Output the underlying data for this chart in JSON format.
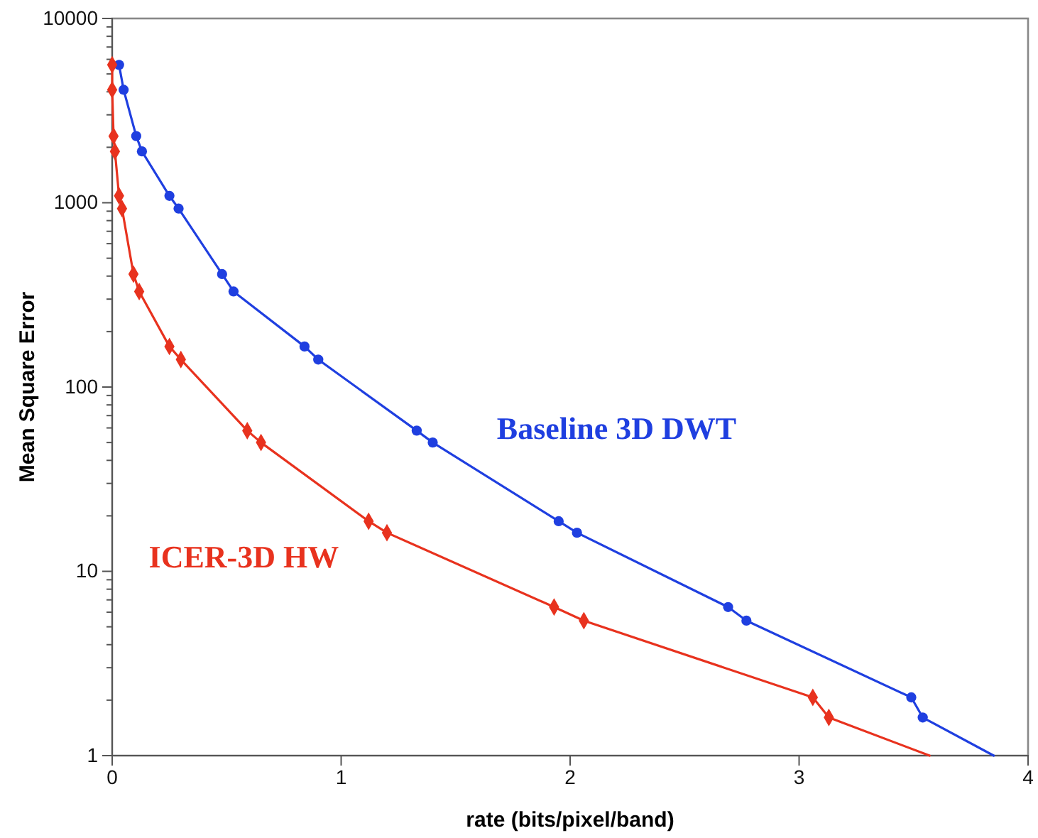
{
  "chart_data": {
    "type": "line",
    "xlabel": "rate (bits/pixel/band)",
    "ylabel": "Mean Square Error",
    "log": "y",
    "grid": false,
    "line_style": "solid",
    "xlim": [
      0,
      4
    ],
    "xticks": [
      0,
      1,
      2,
      3,
      4
    ],
    "ylim": [
      1,
      10000
    ],
    "yticks": [
      1,
      {
        "value": 2,
        "label": null
      },
      {
        "value": 3,
        "label": null
      },
      {
        "value": 4,
        "label": null
      },
      {
        "value": 5,
        "label": null
      },
      {
        "value": 6,
        "label": null
      },
      {
        "value": 7,
        "label": null
      },
      {
        "value": 8,
        "label": null
      },
      {
        "value": 9,
        "label": null
      },
      10,
      {
        "value": 20,
        "label": null
      },
      {
        "value": 30,
        "label": null
      },
      {
        "value": 40,
        "label": null
      },
      {
        "value": 50,
        "label": null
      },
      {
        "value": 60,
        "label": null
      },
      {
        "value": 70,
        "label": null
      },
      {
        "value": 80,
        "label": null
      },
      {
        "value": 90,
        "label": null
      },
      100,
      {
        "value": 200,
        "label": null
      },
      {
        "value": 300,
        "label": null
      },
      {
        "value": 400,
        "label": null
      },
      {
        "value": 500,
        "label": null
      },
      {
        "value": 600,
        "label": null
      },
      {
        "value": 700,
        "label": null
      },
      {
        "value": 800,
        "label": null
      },
      {
        "value": 900,
        "label": null
      },
      1000,
      {
        "value": 2000,
        "label": null
      },
      {
        "value": 3000,
        "label": null
      },
      {
        "value": 4000,
        "label": null
      },
      {
        "value": 5000,
        "label": null
      },
      {
        "value": 6000,
        "label": null
      },
      {
        "value": 7000,
        "label": null
      },
      {
        "value": 8000,
        "label": null
      },
      {
        "value": 9000,
        "label": null
      },
      10000
    ],
    "series": [
      {
        "name": "Baseline 3D DWT",
        "color": "#1f3fe0",
        "marker": "circle",
        "x": [
          0.03,
          0.05,
          0.105,
          0.13,
          0.25,
          0.29,
          0.48,
          0.53,
          0.84,
          0.9,
          1.33,
          1.4,
          1.95,
          2.03,
          2.69,
          2.77,
          3.49,
          3.54,
          3.85
        ],
        "values": [
          5600,
          4100,
          2300,
          1900,
          1090,
          930,
          410,
          330,
          166,
          141,
          58,
          50,
          18.7,
          16.2,
          6.4,
          5.4,
          2.07,
          1.61,
          1
        ]
      },
      {
        "name": "ICER-3D HW",
        "color": "#e8321e",
        "marker": "diamond",
        "x": [
          0,
          0,
          0.006,
          0.012,
          0.03,
          0.043,
          0.093,
          0.118,
          0.25,
          0.3,
          0.59,
          0.65,
          1.12,
          1.2,
          1.93,
          2.06,
          3.06,
          3.13,
          3.57
        ],
        "values": [
          5600,
          4100,
          2300,
          1900,
          1090,
          930,
          410,
          330,
          166,
          141,
          58,
          50,
          18.7,
          16.2,
          6.4,
          5.4,
          2.07,
          1.61,
          1
        ]
      }
    ]
  }
}
